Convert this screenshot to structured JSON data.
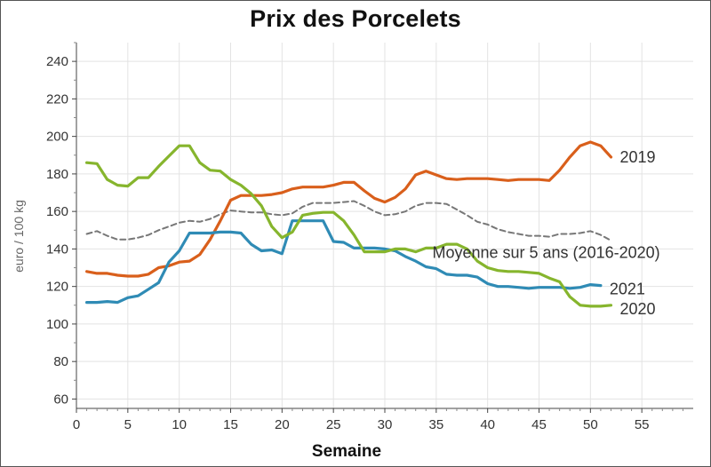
{
  "chart_data": {
    "type": "line",
    "title": "Prix des Porcelets",
    "xlabel": "Semaine",
    "ylabel": "euro / 100 kg",
    "xlim": [
      0,
      60
    ],
    "ylim": [
      55,
      250
    ],
    "xticks": [
      0,
      5,
      10,
      15,
      20,
      25,
      30,
      35,
      40,
      45,
      50,
      55
    ],
    "yticks": [
      60,
      80,
      100,
      120,
      140,
      160,
      180,
      200,
      220,
      240
    ],
    "grid": true,
    "colors": {
      "2019": "#d95f1b",
      "2020": "#86b52d",
      "2021": "#2f8bb5",
      "Moyenne sur 5 ans (2016-2020)": "#777777"
    },
    "series": [
      {
        "name": "2019",
        "x": [
          1,
          2,
          3,
          4,
          5,
          6,
          7,
          8,
          9,
          10,
          11,
          12,
          13,
          14,
          15,
          16,
          17,
          18,
          19,
          20,
          21,
          22,
          23,
          24,
          25,
          26,
          27,
          28,
          29,
          30,
          31,
          32,
          33,
          34,
          35,
          36,
          37,
          38,
          39,
          40,
          41,
          42,
          43,
          44,
          45,
          46,
          47,
          48,
          49,
          50,
          51,
          52
        ],
        "y": [
          128,
          127,
          127,
          126,
          125.5,
          125.5,
          126.5,
          130,
          131,
          133,
          133.5,
          137,
          145,
          155,
          166,
          168.5,
          168.5,
          168.5,
          169,
          170,
          172,
          173,
          173,
          173,
          174,
          175.5,
          175.5,
          171,
          167,
          165,
          167.5,
          172,
          179.5,
          181.5,
          179.5,
          177.5,
          177,
          177.5,
          177.5,
          177.5,
          177,
          176.5,
          177,
          177,
          177,
          176.5,
          182,
          189,
          195,
          197,
          195,
          189
        ]
      },
      {
        "name": "2020",
        "x": [
          1,
          2,
          3,
          4,
          5,
          6,
          7,
          8,
          9,
          10,
          11,
          12,
          13,
          14,
          15,
          16,
          17,
          18,
          19,
          20,
          21,
          22,
          23,
          24,
          25,
          26,
          27,
          28,
          29,
          30,
          31,
          32,
          33,
          34,
          35,
          36,
          37,
          38,
          39,
          40,
          41,
          42,
          43,
          44,
          45,
          46,
          47,
          48,
          49,
          50,
          51,
          52
        ],
        "y": [
          186,
          185.5,
          177,
          174,
          173.5,
          178,
          178,
          184,
          189.5,
          195,
          195,
          186,
          182,
          181.5,
          177,
          174,
          169.5,
          163,
          152,
          146,
          149,
          158,
          159,
          159.5,
          159.5,
          155,
          147.5,
          138.5,
          138.5,
          138.5,
          140,
          140,
          138.5,
          140.5,
          140.5,
          142.5,
          142.5,
          140,
          133.5,
          130,
          128.5,
          128,
          128,
          127.5,
          127,
          124.5,
          122.5,
          114.5,
          110,
          109.5,
          109.5,
          110
        ]
      },
      {
        "name": "2021",
        "x": [
          1,
          2,
          3,
          4,
          5,
          6,
          7,
          8,
          9,
          10,
          11,
          12,
          13,
          14,
          15,
          16,
          17,
          18,
          19,
          20,
          21,
          22,
          23,
          24,
          25,
          26,
          27,
          28,
          29,
          30,
          31,
          32,
          33,
          34,
          35,
          36,
          37,
          38,
          39,
          40,
          41,
          42,
          43,
          44,
          45,
          46,
          47,
          48,
          49,
          50,
          51
        ],
        "y": [
          111.5,
          111.5,
          112,
          111.5,
          114,
          115,
          118.5,
          122,
          133,
          139,
          148.5,
          148.5,
          148.5,
          149,
          149,
          148.5,
          142.5,
          139,
          139.5,
          137.5,
          155,
          155,
          155,
          155,
          144,
          143.5,
          140.5,
          140.5,
          140.5,
          140,
          139,
          136,
          133.5,
          130.5,
          129.5,
          126.5,
          126,
          126,
          125,
          121.5,
          120,
          120,
          119.5,
          119,
          119.5,
          119.5,
          119.5,
          119,
          119.5,
          121,
          120.5
        ]
      },
      {
        "name": "Moyenne sur 5 ans (2016-2020)",
        "dashed": true,
        "x": [
          1,
          2,
          3,
          4,
          5,
          6,
          7,
          8,
          9,
          10,
          11,
          12,
          13,
          14,
          15,
          16,
          17,
          18,
          19,
          20,
          21,
          22,
          23,
          24,
          25,
          26,
          27,
          28,
          29,
          30,
          31,
          32,
          33,
          34,
          35,
          36,
          37,
          38,
          39,
          40,
          41,
          42,
          43,
          44,
          45,
          46,
          47,
          48,
          49,
          50,
          51,
          52
        ],
        "y": [
          148,
          149.5,
          147,
          145,
          145,
          146,
          147.5,
          150,
          152,
          154,
          155,
          154.5,
          156,
          158.5,
          160.5,
          160,
          159.5,
          159.5,
          158.5,
          158,
          159,
          162.5,
          164.5,
          164.5,
          164.5,
          165,
          165.5,
          163,
          160,
          158,
          158.5,
          160,
          163,
          164.5,
          164.5,
          164,
          161,
          158,
          154.5,
          153,
          150.5,
          149,
          148,
          147,
          147,
          146.5,
          148,
          148,
          148.5,
          149.5,
          147.5,
          144.5
        ]
      }
    ]
  }
}
